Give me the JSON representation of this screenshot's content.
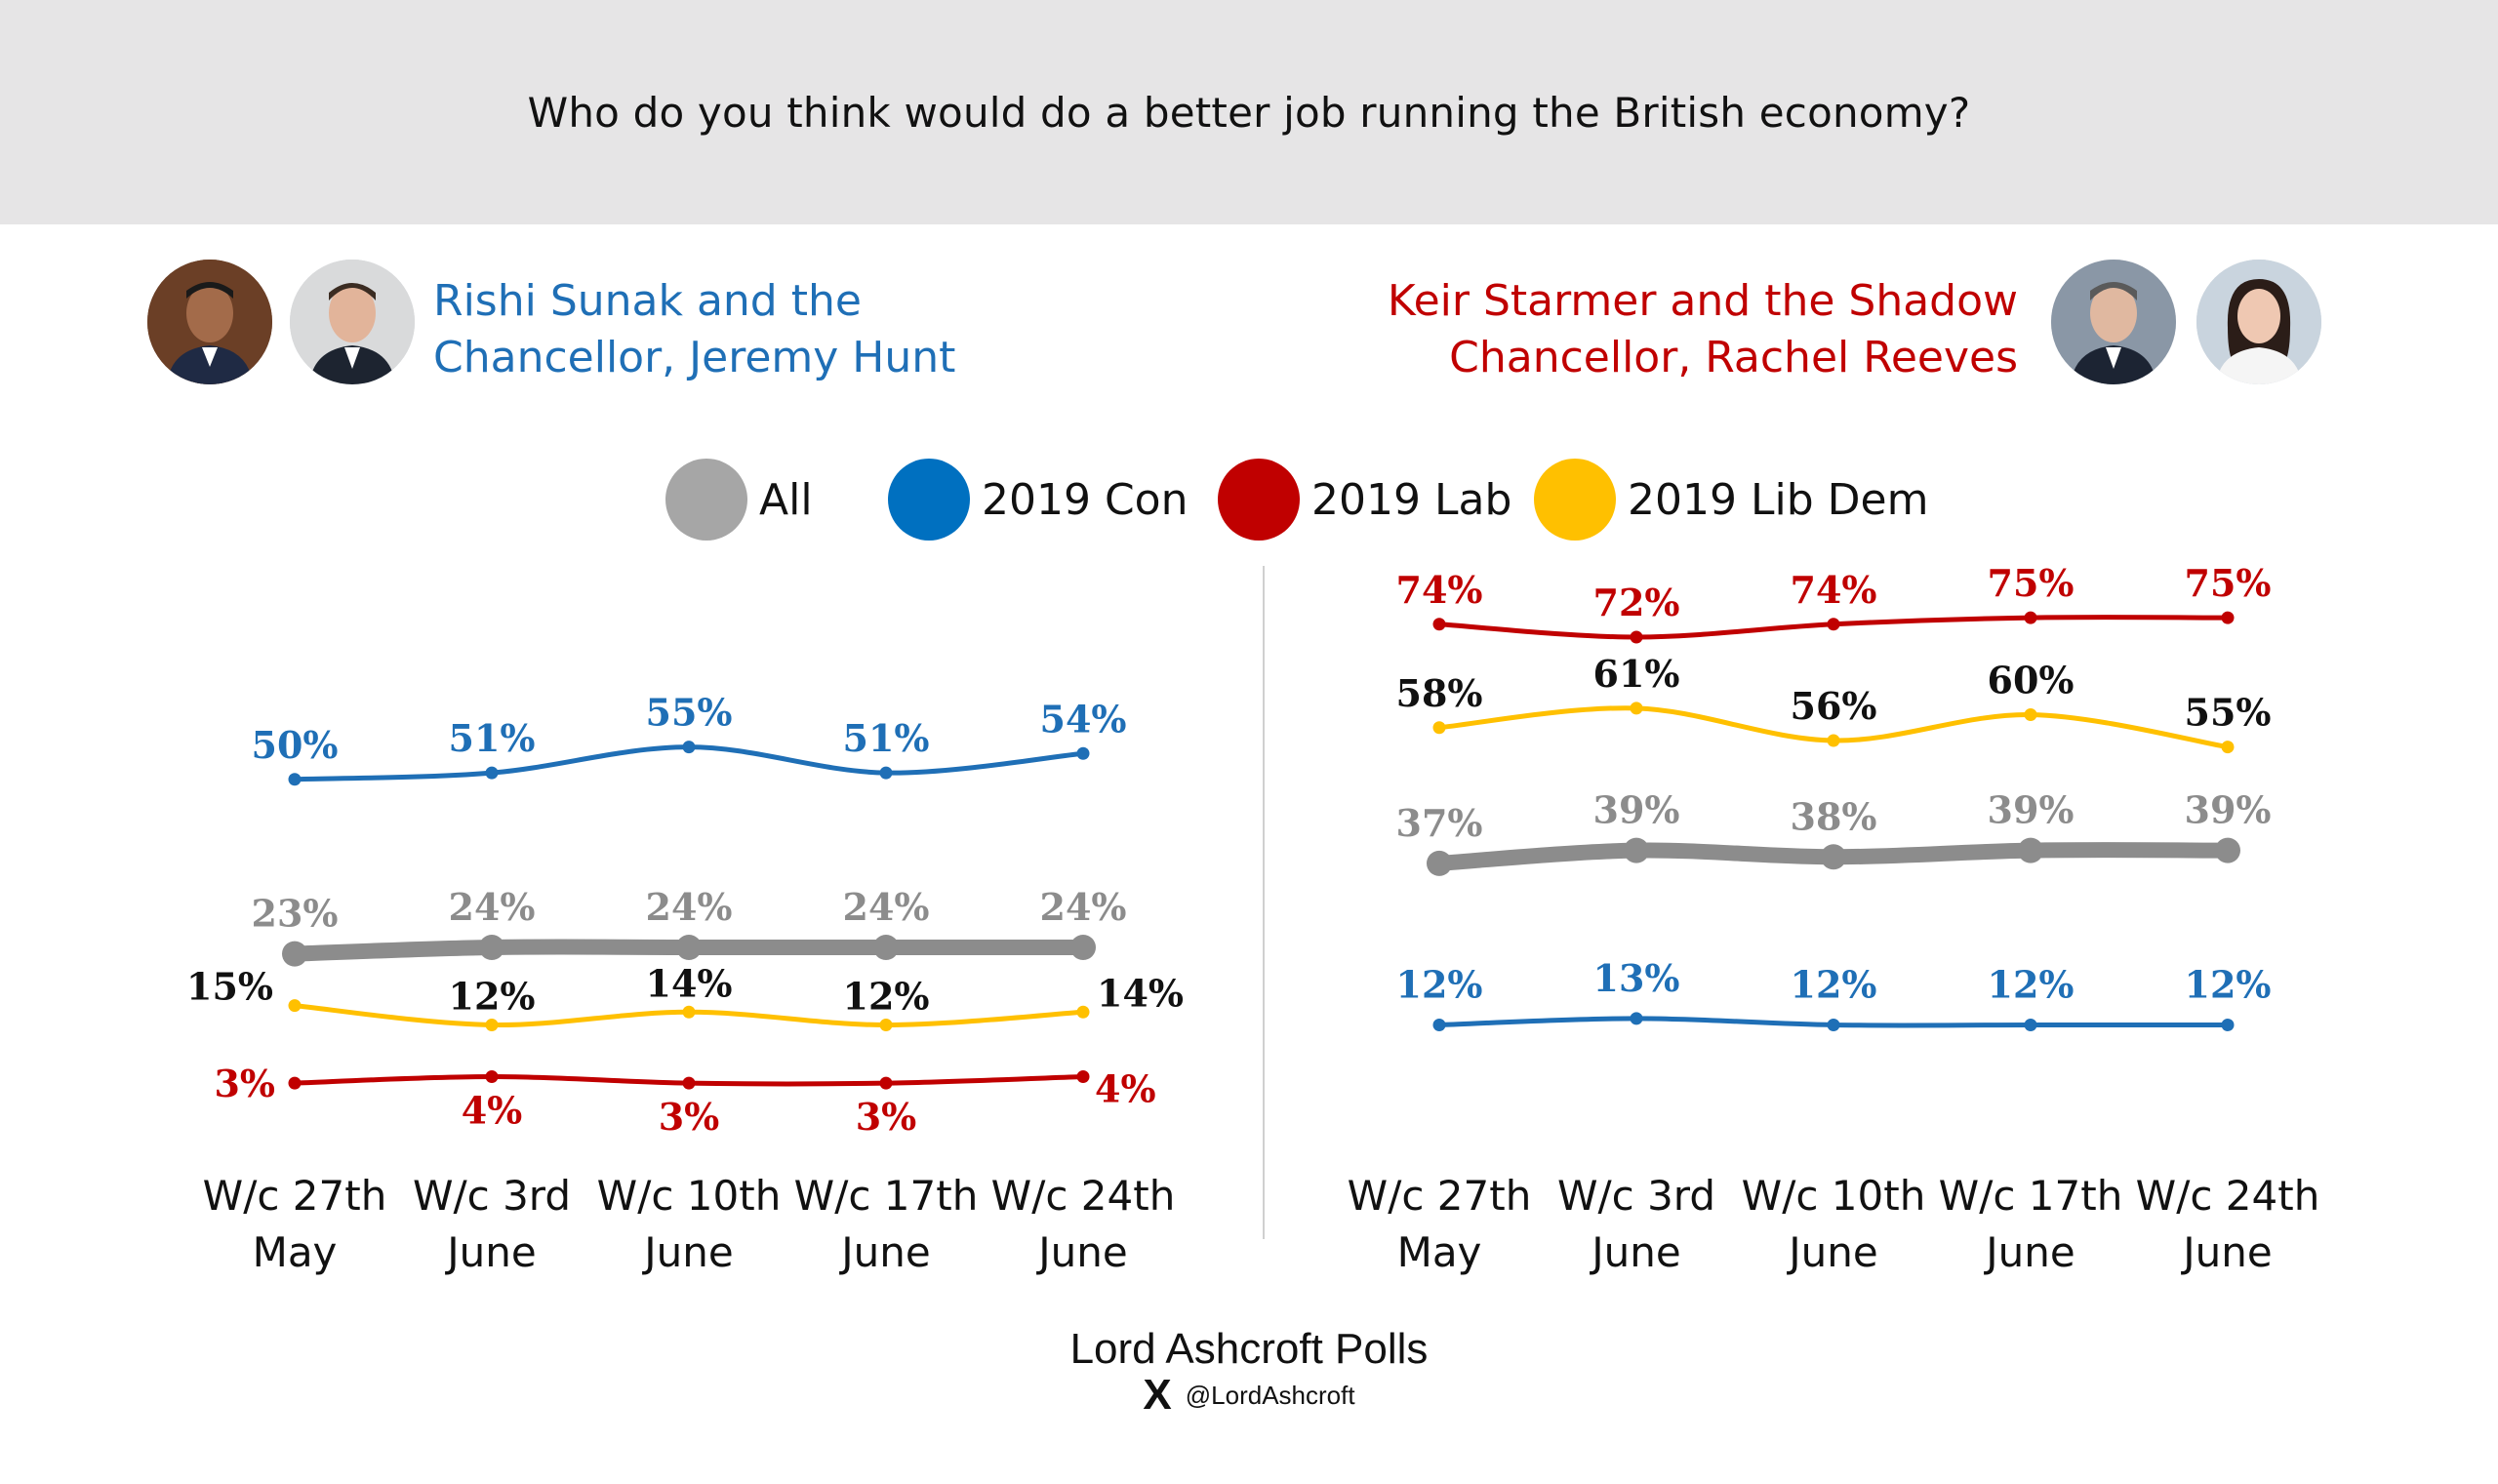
{
  "header": {
    "question": "Who do you think would do a better job running the British economy?"
  },
  "left_pair": {
    "line1": "Rishi Sunak and the",
    "line2": "Chancellor, Jeremy Hunt",
    "color": "#1f6fb6"
  },
  "right_pair": {
    "line1": "Keir Starmer and the Shadow",
    "line2": "Chancellor, Rachel Reeves",
    "color": "#c00000"
  },
  "legend": [
    {
      "label": "All",
      "color": "#a6a6a6"
    },
    {
      "label": "2019 Con",
      "color": "#0070c0"
    },
    {
      "label": "2019 Lab",
      "color": "#c00000"
    },
    {
      "label": "2019 Lib Dem",
      "color": "#ffc000"
    }
  ],
  "chart_data": [
    {
      "type": "line",
      "title": "Rishi Sunak and the Chancellor, Jeremy Hunt",
      "categories": [
        "W/c 27th May",
        "W/c 3rd June",
        "W/c 10th June",
        "W/c 17th June",
        "W/c 24th June"
      ],
      "category_lines": [
        [
          "W/c 27th",
          "May"
        ],
        [
          "W/c 3rd",
          "June"
        ],
        [
          "W/c 10th",
          "June"
        ],
        [
          "W/c 17th",
          "June"
        ],
        [
          "W/c 24th",
          "June"
        ]
      ],
      "ylim": [
        0,
        80
      ],
      "series": [
        {
          "name": "2019 Con",
          "color": "#1f6fb6",
          "values": [
            50,
            51,
            55,
            51,
            54
          ],
          "labels": [
            "50%",
            "51%",
            "55%",
            "51%",
            "54%"
          ],
          "label_color": "#1f6fb6"
        },
        {
          "name": "All",
          "color": "#8c8c8c",
          "values": [
            23,
            24,
            24,
            24,
            24
          ],
          "labels": [
            "23%",
            "24%",
            "24%",
            "24%",
            "24%"
          ],
          "label_color": "#8c8c8c"
        },
        {
          "name": "2019 Lib Dem",
          "color": "#ffc000",
          "values": [
            15,
            12,
            14,
            12,
            14
          ],
          "labels": [
            "15%",
            "12%",
            "14%",
            "12%",
            "14%"
          ],
          "label_color": "#111111"
        },
        {
          "name": "2019 Lab",
          "color": "#c00000",
          "values": [
            3,
            4,
            3,
            3,
            4
          ],
          "labels": [
            "3%",
            "4%",
            "3%",
            "3%",
            "4%"
          ],
          "label_color": "#c00000"
        }
      ]
    },
    {
      "type": "line",
      "title": "Keir Starmer and the Shadow Chancellor, Rachel Reeves",
      "categories": [
        "W/c 27th May",
        "W/c 3rd June",
        "W/c 10th June",
        "W/c 17th June",
        "W/c 24th June"
      ],
      "category_lines": [
        [
          "W/c 27th",
          "May"
        ],
        [
          "W/c 3rd",
          "June"
        ],
        [
          "W/c 10th",
          "June"
        ],
        [
          "W/c 17th",
          "June"
        ],
        [
          "W/c 24th",
          "June"
        ]
      ],
      "ylim": [
        0,
        80
      ],
      "series": [
        {
          "name": "2019 Lab",
          "color": "#c00000",
          "values": [
            74,
            72,
            74,
            75,
            75
          ],
          "labels": [
            "74%",
            "72%",
            "74%",
            "75%",
            "75%"
          ],
          "label_color": "#c00000"
        },
        {
          "name": "2019 Lib Dem",
          "color": "#ffc000",
          "values": [
            58,
            61,
            56,
            60,
            55
          ],
          "labels": [
            "58%",
            "61%",
            "56%",
            "60%",
            "55%"
          ],
          "label_color": "#111111"
        },
        {
          "name": "All",
          "color": "#8c8c8c",
          "values": [
            37,
            39,
            38,
            39,
            39
          ],
          "labels": [
            "37%",
            "39%",
            "38%",
            "39%",
            "39%"
          ],
          "label_color": "#8c8c8c"
        },
        {
          "name": "2019 Con",
          "color": "#1f6fb6",
          "values": [
            12,
            13,
            12,
            12,
            12
          ],
          "labels": [
            "12%",
            "13%",
            "12%",
            "12%",
            "12%"
          ],
          "label_color": "#1f6fb6"
        }
      ]
    }
  ],
  "footer": {
    "title": "Lord Ashcroft Polls",
    "logo_glyph": "X",
    "handle": "@LordAshcroft"
  }
}
